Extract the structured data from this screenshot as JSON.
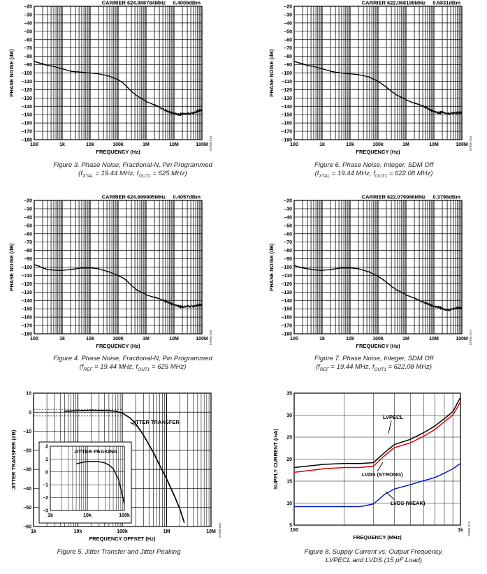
{
  "chart_data": [
    {
      "id": "fig3",
      "type": "line",
      "xscale": "log",
      "xlim": [
        100,
        100000000
      ],
      "ylim": [
        -180,
        -20
      ],
      "xlabel": "FREQUENCY (Hz)",
      "ylabel": "PHASE NOISE (dB)",
      "xticks": [
        "100",
        "1k",
        "10k",
        "100k",
        "1M",
        "10M",
        "100M"
      ],
      "yticks": [
        "–20",
        "–30",
        "–40",
        "–50",
        "–60",
        "–70",
        "–80",
        "–90",
        "–100",
        "–110",
        "–120",
        "–130",
        "–140",
        "–150",
        "–160",
        "–170",
        "–180"
      ],
      "header_carrier": "CARRIER 624.988784MHz",
      "header_power": "0.4009dBm",
      "code": "07806-014",
      "series": [
        {
          "x": [
            100,
            150,
            200,
            300,
            500,
            1000,
            2000,
            3000,
            5000,
            10000,
            20000,
            50000,
            100000,
            150000,
            200000,
            300000,
            500000,
            1000000,
            2000000,
            3000000,
            5000000,
            7000000,
            10000000,
            15000000,
            20000000,
            30000000,
            50000000,
            70000000,
            100000000
          ],
          "y": [
            -86,
            -88,
            -89,
            -91,
            -92,
            -95,
            -98,
            -98.5,
            -99,
            -100,
            -101,
            -104,
            -108,
            -112,
            -116,
            -122,
            -128,
            -134,
            -138,
            -141,
            -145,
            -147,
            -148,
            -150,
            -149,
            -149,
            -148,
            -146,
            -144
          ]
        }
      ],
      "caption_line1": "Figure 3. Phase Noise, Fractional-N, Pin Programmed",
      "cap_l2_a": "(f",
      "cap_l2_sub1": "XTAL",
      "cap_l2_b": " = 19.44 MHz, f",
      "cap_l2_sub2": "OUT1",
      "cap_l2_c": " = 625 MHz)"
    },
    {
      "id": "fig6",
      "type": "line",
      "xscale": "log",
      "xlim": [
        100,
        100000000
      ],
      "ylim": [
        -180,
        -20
      ],
      "xlabel": "FREQUENCY (Hz)",
      "ylabel": "PHASE NOISE (dB)",
      "xticks": [
        "100",
        "1k",
        "10k",
        "100k",
        "1M",
        "10M",
        "100M"
      ],
      "yticks": [
        "–20",
        "–30",
        "–40",
        "–50",
        "–60",
        "–70",
        "–80",
        "–90",
        "–100",
        "–110",
        "–120",
        "–130",
        "–140",
        "–150",
        "–160",
        "–170",
        "–180"
      ],
      "header_carrier": "CARRIER 622.068199MHz",
      "header_power": "0.5831dBm",
      "code": "07806-016",
      "series": [
        {
          "x": [
            100,
            150,
            200,
            300,
            500,
            1000,
            2000,
            3000,
            5000,
            10000,
            20000,
            50000,
            100000,
            150000,
            200000,
            300000,
            500000,
            1000000,
            2000000,
            3000000,
            5000000,
            7000000,
            10000000,
            15000000,
            20000000,
            30000000,
            50000000,
            70000000,
            100000000
          ],
          "y": [
            -86,
            -88,
            -89,
            -91,
            -92,
            -95,
            -98,
            -99,
            -100,
            -101,
            -102,
            -105,
            -110,
            -114,
            -117,
            -122,
            -127,
            -132,
            -136,
            -138,
            -141,
            -144,
            -146,
            -148,
            -147,
            -149,
            -148,
            -148,
            -147
          ]
        }
      ],
      "caption_line1": "Figure 6. Phase Noise, Integer, SDM Off",
      "cap_l2_a": "(f",
      "cap_l2_sub1": "XTAL",
      "cap_l2_b": " = 19.44 MHz, f",
      "cap_l2_sub2": "OUT1",
      "cap_l2_c": " = 622.08 MHz)"
    },
    {
      "id": "fig4",
      "type": "line",
      "xscale": "log",
      "xlim": [
        100,
        100000000
      ],
      "ylim": [
        -180,
        -20
      ],
      "xlabel": "FREQUENCY (Hz)",
      "ylabel": "PHASE NOISE (dB)",
      "xticks": [
        "100",
        "1k",
        "10k",
        "100k",
        "1M",
        "10M",
        "100M"
      ],
      "yticks": [
        "–20",
        "–30",
        "–40",
        "–50",
        "–60",
        "–70",
        "–80",
        "–90",
        "–100",
        "–110",
        "–120",
        "–130",
        "–140",
        "–150",
        "–160",
        "–170",
        "–180"
      ],
      "header_carrier": "CARRIER 624.999995MHz",
      "header_power": "0.4057dBm",
      "code": "07806-015",
      "series": [
        {
          "x": [
            100,
            150,
            200,
            300,
            500,
            1000,
            2000,
            3000,
            5000,
            10000,
            20000,
            50000,
            100000,
            150000,
            200000,
            300000,
            500000,
            1000000,
            2000000,
            3000000,
            5000000,
            7000000,
            10000000,
            15000000,
            20000000,
            30000000,
            50000000,
            70000000,
            100000000
          ],
          "y": [
            -97,
            -99,
            -101,
            -103,
            -103.5,
            -104,
            -103,
            -102,
            -101,
            -101,
            -102,
            -106,
            -110,
            -113,
            -116,
            -122,
            -128,
            -133,
            -136,
            -138,
            -141,
            -143,
            -145,
            -147,
            -148,
            -147,
            -147,
            -146,
            -145
          ]
        }
      ],
      "caption_line1": "Figure 4. Phase Noise, Fractional-N, Pin Programmed",
      "cap_l2_a": "(f",
      "cap_l2_sub1": "REF",
      "cap_l2_b": " = 19.44 MHz, f",
      "cap_l2_sub2": "OUT1",
      "cap_l2_c": " = 625 MHz)"
    },
    {
      "id": "fig7",
      "type": "line",
      "xscale": "log",
      "xlim": [
        100,
        100000000
      ],
      "ylim": [
        -180,
        -20
      ],
      "xlabel": "FREQUENCY (Hz)",
      "ylabel": "PHASE NOISE (dB)",
      "xticks": [
        "100",
        "1k",
        "10k",
        "100k",
        "1M",
        "10M",
        "100M"
      ],
      "yticks": [
        "–20",
        "–30",
        "–40",
        "–50",
        "–60",
        "–70",
        "–80",
        "–90",
        "–100",
        "–110",
        "–120",
        "–130",
        "–140",
        "–150",
        "–160",
        "–170",
        "–180"
      ],
      "header_carrier": "CARRIER 622.079986MHz",
      "header_power": "0.3798dBm",
      "code": "07806-017",
      "series": [
        {
          "x": [
            100,
            150,
            200,
            300,
            500,
            1000,
            2000,
            3000,
            5000,
            10000,
            20000,
            50000,
            100000,
            150000,
            200000,
            300000,
            500000,
            1000000,
            2000000,
            3000000,
            5000000,
            7000000,
            10000000,
            15000000,
            20000000,
            30000000,
            50000000,
            70000000,
            100000000
          ],
          "y": [
            -98,
            -100,
            -101,
            -102,
            -103,
            -104,
            -103,
            -102,
            -101,
            -101,
            -102,
            -106,
            -111,
            -115,
            -118,
            -123,
            -128,
            -133,
            -137,
            -140,
            -143,
            -145,
            -147,
            -148,
            -150,
            -152,
            -150,
            -149,
            -149
          ]
        }
      ],
      "caption_line1": "Figure 7. Phase Noise, Integer, SDM Off",
      "cap_l2_a": "(f",
      "cap_l2_sub1": "REF",
      "cap_l2_b": " = 19.44 MHz, f",
      "cap_l2_sub2": "OUT1",
      "cap_l2_c": " = 622.08 MHz)"
    },
    {
      "id": "fig5",
      "type": "line",
      "xscale": "log",
      "xlim": [
        1000,
        10000000
      ],
      "ylim": [
        -60,
        10
      ],
      "xlabel": "FREQUENCY OFFSET (Hz)",
      "ylabel": "JITTER TRANSFER (dB)",
      "xticks": [
        "1k",
        "10k",
        "100k",
        "1M",
        "10M"
      ],
      "yticks": [
        "10",
        "0",
        "–10",
        "–20",
        "–30",
        "–40",
        "–50",
        "–60"
      ],
      "code": "07806-018",
      "annotation": "JITTER TRANSFER",
      "series": [
        {
          "x": [
            5000,
            10000,
            20000,
            50000,
            70000,
            100000,
            150000,
            200000,
            300000,
            500000,
            700000,
            1000000,
            1500000,
            2000000,
            2500000
          ],
          "y": [
            0.5,
            0.8,
            1.0,
            0.8,
            0.5,
            -0.5,
            -3,
            -6,
            -12,
            -21,
            -28,
            -35,
            -44,
            -51,
            -58
          ]
        }
      ],
      "inset": {
        "label": "JITTER PEAKING",
        "xlim": [
          1000,
          100000
        ],
        "ylim": [
          -3,
          2
        ],
        "xticks": [
          "1k",
          "10k",
          "100k"
        ],
        "yticks": [
          "2",
          "1",
          "0",
          "–1",
          "–2",
          "–3"
        ],
        "series": [
          {
            "x": [
              5000,
              7000,
              10000,
              15000,
              20000,
              30000,
              40000,
              50000,
              70000,
              100000
            ],
            "y": [
              0.62,
              0.73,
              0.8,
              0.82,
              0.8,
              0.7,
              0.5,
              0.25,
              -0.6,
              -2.5
            ]
          }
        ]
      },
      "caption_line1": "Figure 5. Jitter Transfer and Jitter Peaking"
    },
    {
      "id": "fig8",
      "type": "line",
      "xscale": "log",
      "xlim": [
        100,
        1000
      ],
      "ylim": [
        5,
        35
      ],
      "xlabel": "FREQUENCY (MHz)",
      "ylabel": "SUPPLY CURRENT (mA)",
      "xticks": [
        "100",
        "1k"
      ],
      "yticks": [
        "35",
        "30",
        "25",
        "20",
        "15",
        "10",
        "5"
      ],
      "code": "07806-019",
      "colors": {
        "lvpecl": "#000000",
        "lvds_strong": "#e00000",
        "lvds_weak": "#0018d0"
      },
      "series": [
        {
          "name": "LVPECL",
          "x": [
            100,
            150,
            200,
            250,
            300,
            350,
            400,
            500,
            600,
            700,
            800,
            900,
            1000
          ],
          "y": [
            18.1,
            18.8,
            19.0,
            19.0,
            19.2,
            21.5,
            23.3,
            24.5,
            26.0,
            27.5,
            29.2,
            30.8,
            34.0
          ]
        },
        {
          "name": "LVDS (STRONG)",
          "x": [
            100,
            150,
            200,
            250,
            300,
            350,
            400,
            500,
            600,
            700,
            800,
            900,
            1000
          ],
          "y": [
            17.0,
            17.8,
            18.1,
            18.1,
            18.4,
            20.8,
            22.6,
            23.7,
            25.2,
            26.7,
            28.5,
            30.0,
            33.0
          ]
        },
        {
          "name": "LVDS (WEAK)",
          "x": [
            100,
            150,
            200,
            250,
            300,
            350,
            400,
            500,
            600,
            700,
            800,
            900,
            1000
          ],
          "y": [
            9.2,
            9.2,
            9.2,
            9.2,
            9.8,
            12.0,
            13.2,
            14.2,
            15.1,
            15.8,
            16.8,
            17.8,
            19.0
          ]
        }
      ],
      "caption_line1": "Figure 8. Supply Current vs. Output Frequency,",
      "caption_line2": "LVPECL and LVDS (15 pF Load)"
    }
  ]
}
